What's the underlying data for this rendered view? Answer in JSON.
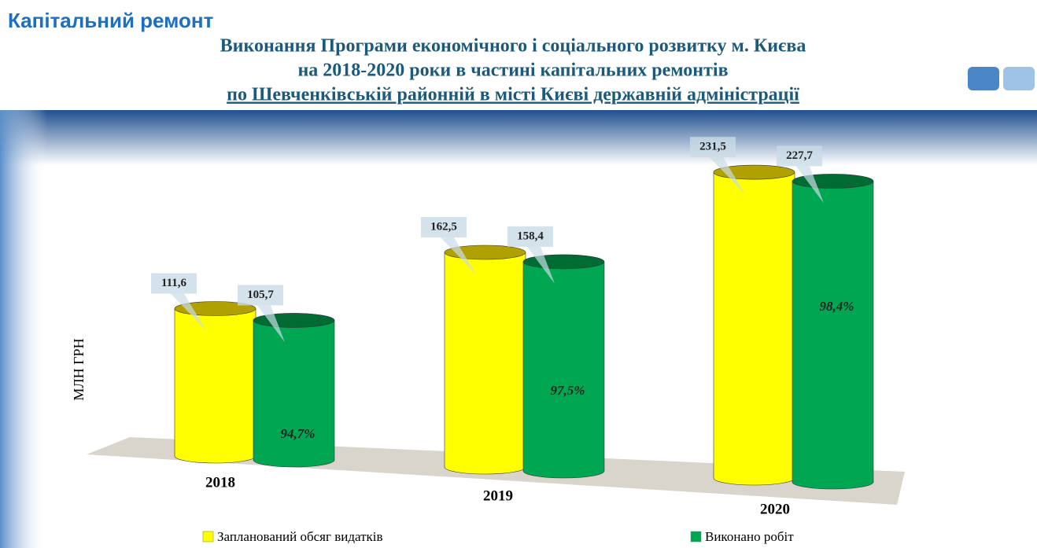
{
  "header": "Капітальний ремонт",
  "chart_data": {
    "type": "cylinder",
    "title": [
      "Виконання Програми економічного і соціального розвитку м. Києва",
      "на 2018-2020 роки в частині капітальних ремонтів",
      "по Шевченківській районній в місті Києві державній адміністрації"
    ],
    "y_label": "МЛН ГРН",
    "categories": [
      "2018",
      "2019",
      "2020"
    ],
    "series": [
      {
        "name": "Запланований обсяг видатків",
        "color": "#ffff00",
        "values": [
          111.6,
          162.5,
          231.5
        ],
        "value_labels": [
          "111,6",
          "162,5",
          "231,5"
        ]
      },
      {
        "name": "Виконано робіт",
        "color": "#00a651",
        "values": [
          105.7,
          158.4,
          227.7
        ],
        "value_labels": [
          "105,7",
          "158,4",
          "227,7"
        ]
      }
    ],
    "completion": {
      "values": [
        94.7,
        97.5,
        98.4
      ],
      "value_labels": [
        "94,7%",
        "97,5%",
        "98,4%"
      ]
    },
    "ylim": [
      0,
      250
    ]
  }
}
